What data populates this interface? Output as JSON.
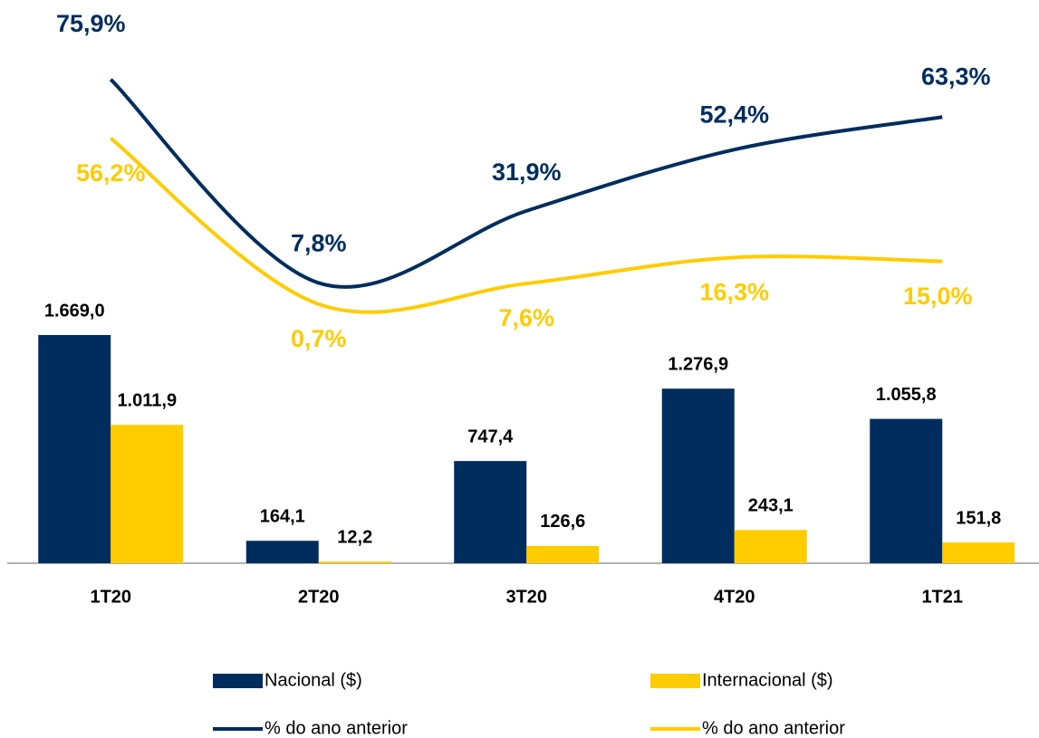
{
  "chart_data": {
    "type": "bar",
    "categories": [
      "1T20",
      "2T20",
      "3T20",
      "4T20",
      "1T21"
    ],
    "ylim": [
      0,
      4000
    ],
    "y2lim": [
      -86,
      97
    ],
    "series": [
      {
        "name": "Nacional ($)",
        "type": "bar",
        "color": "#002d5e",
        "values": [
          1669.0,
          164.1,
          747.4,
          1276.9,
          1055.8
        ],
        "value_labels": [
          "1.669,0",
          "164,1",
          "747,4",
          "1.276,9",
          "1.055,8"
        ]
      },
      {
        "name": "Internacional ($)",
        "type": "bar",
        "color": "#ffcc00",
        "values": [
          1011.9,
          12.2,
          126.6,
          243.1,
          151.8
        ],
        "value_labels": [
          "1.011,9",
          "12,2",
          "126,6",
          "243,1",
          "151,8"
        ]
      },
      {
        "name": "% do ano anterior",
        "type": "line",
        "axis": "y2",
        "color": "#002d5e",
        "values": [
          75.9,
          7.8,
          31.9,
          52.4,
          63.3
        ],
        "value_labels": [
          "75,9%",
          "7,8%",
          "31,9%",
          "52,4%",
          "63,3%"
        ]
      },
      {
        "name": "% do ano anterior",
        "type": "line",
        "axis": "y2",
        "color": "#ffcc00",
        "values": [
          56.2,
          0.7,
          7.6,
          16.3,
          15.0
        ],
        "value_labels": [
          "56,2%",
          "0,7%",
          "7,6%",
          "16,3%",
          "15,0%"
        ]
      }
    ]
  }
}
